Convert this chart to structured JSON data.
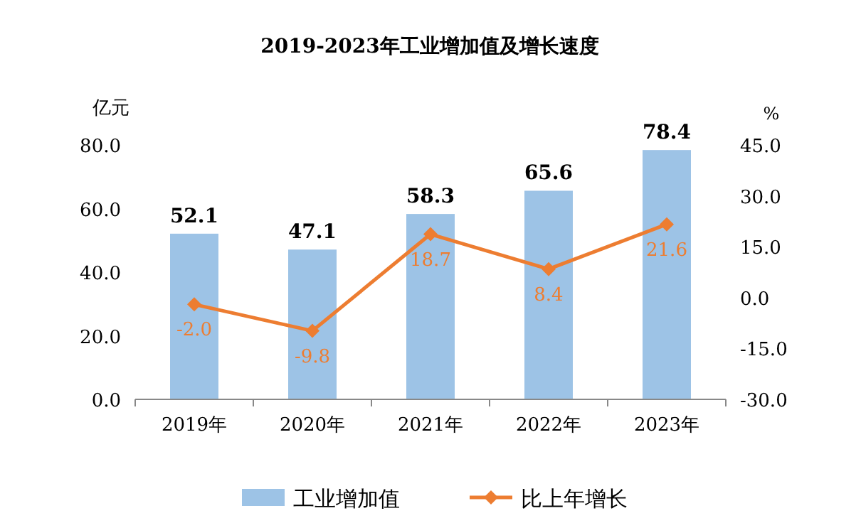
{
  "chart_data": {
    "type": "bar",
    "title": "2019-2023年工业增加值及增长速度",
    "ylabel": "亿元",
    "y2label": "%",
    "categories": [
      "2019年",
      "2020年",
      "2021年",
      "2022年",
      "2023年"
    ],
    "series": [
      {
        "name": "工业增加值",
        "color": "#9dc3e6",
        "values": [
          52.1,
          47.1,
          58.3,
          65.6,
          78.4
        ],
        "value_labels": [
          "52.1",
          "47.1",
          "58.3",
          "65.6",
          "78.4"
        ]
      },
      {
        "name": "比上年增长",
        "type": "line",
        "axis": "y2",
        "color": "#ed7d31",
        "marker": "diamond",
        "values": [
          -2.0,
          -9.8,
          18.7,
          8.4,
          21.6
        ],
        "value_labels": [
          "-2.0",
          "-9.8",
          "18.7",
          "8.4",
          "21.6"
        ]
      }
    ],
    "ylim": [
      0,
      80
    ],
    "yticks": [
      {
        "value": 0,
        "label": "0.0"
      },
      {
        "value": 20,
        "label": "20.0"
      },
      {
        "value": 40,
        "label": "40.0"
      },
      {
        "value": 60,
        "label": "60.0"
      },
      {
        "value": 80,
        "label": "80.0"
      }
    ],
    "y2lim": [
      -30,
      45
    ],
    "y2ticks": [
      {
        "value": -30,
        "label": "-30.0"
      },
      {
        "value": -15,
        "label": "-15.0"
      },
      {
        "value": 0,
        "label": "0.0"
      },
      {
        "value": 15,
        "label": "15.0"
      },
      {
        "value": 30,
        "label": "30.0"
      },
      {
        "value": 45,
        "label": "45.0"
      }
    ],
    "legend": "bottom",
    "grid": false
  }
}
